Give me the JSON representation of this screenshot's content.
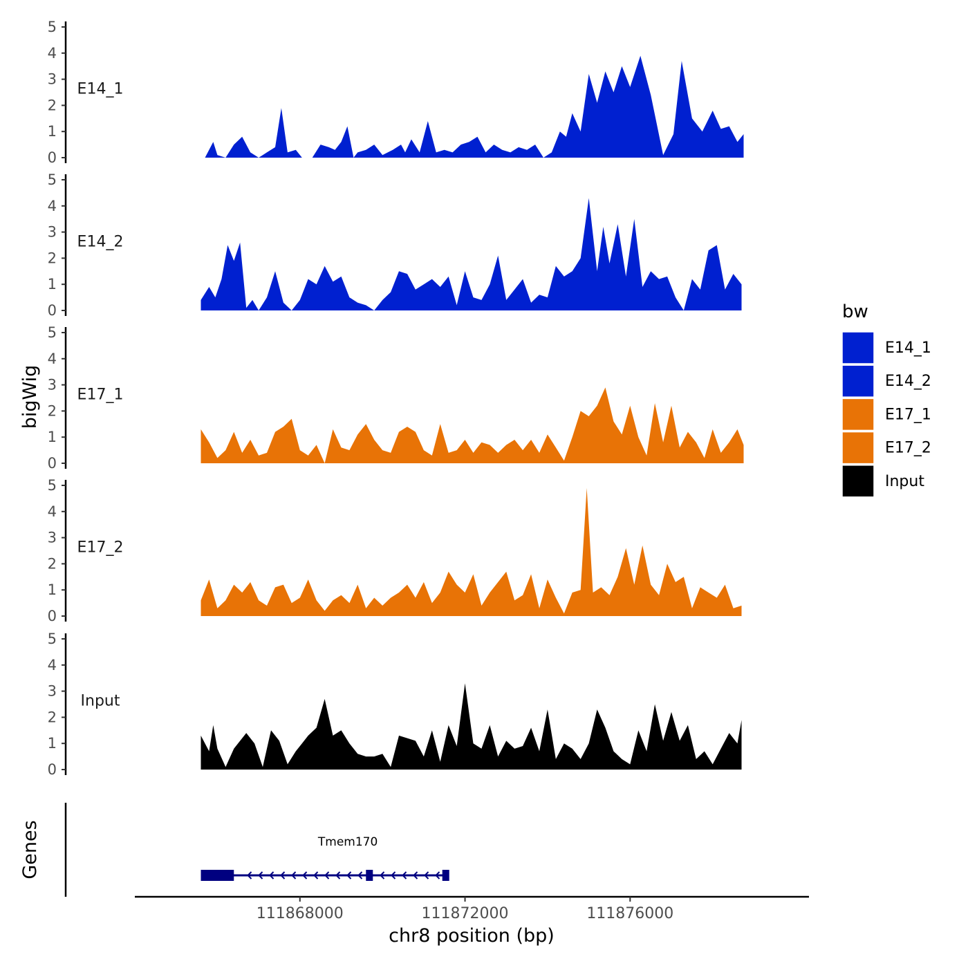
{
  "chart_data": {
    "type": "area",
    "subtype": "genome coverage tracks (bigWig) with gene annotation",
    "xlabel": "chr8 position (bp)",
    "ylabel": "bigWig",
    "gene_panel_label": "Genes",
    "x_ticks": [
      111868000,
      111872000,
      111876000
    ],
    "x_tick_labels": [
      "111868000",
      "111872000",
      "111876000"
    ],
    "xlim": [
      111864000,
      111880300
    ],
    "ylim": [
      0,
      5
    ],
    "y_ticks": [
      0,
      1,
      2,
      3,
      4,
      5
    ],
    "y_tick_labels": [
      "0",
      "1",
      "2",
      "3",
      "4",
      "5"
    ],
    "grid": false,
    "legend": {
      "title": "bw",
      "position": "right",
      "entries": [
        {
          "label": "E14_1",
          "color": "#0020d0"
        },
        {
          "label": "E14_2",
          "color": "#0020d0"
        },
        {
          "label": "E17_1",
          "color": "#e87306"
        },
        {
          "label": "E17_2",
          "color": "#e87306"
        },
        {
          "label": "Input",
          "color": "#000000"
        }
      ]
    },
    "series": [
      {
        "name": "E14_1",
        "color": "#0020d0",
        "x": [
          111865700,
          111865900,
          111866000,
          111866200,
          111866400,
          111866600,
          111866800,
          111867000,
          111867200,
          111867400,
          111867550,
          111867700,
          111867900,
          111868050,
          111868300,
          111868500,
          111868700,
          111868850,
          111869000,
          111869150,
          111869300,
          111869400,
          111869600,
          111869800,
          111870000,
          111870250,
          111870450,
          111870550,
          111870700,
          111870900,
          111871100,
          111871300,
          111871500,
          111871700,
          111871900,
          111872100,
          111872300,
          111872500,
          111872700,
          111872900,
          111873100,
          111873300,
          111873500,
          111873700,
          111873900,
          111874100,
          111874300,
          111874450,
          111874600,
          111874800,
          111875000,
          111875200,
          111875400,
          111875600,
          111875800,
          111876000,
          111876250,
          111876500,
          111876800,
          111877050,
          111877250,
          111877500,
          111877750,
          111878000,
          111878200,
          111878400,
          111878600,
          111878750
        ],
        "y": [
          0,
          0.6,
          0.1,
          0,
          0.5,
          0.8,
          0.2,
          0,
          0.2,
          0.4,
          1.9,
          0.2,
          0.3,
          0,
          0,
          0.5,
          0.4,
          0.3,
          0.6,
          1.2,
          0,
          0.2,
          0.3,
          0.5,
          0.1,
          0.3,
          0.5,
          0.2,
          0.7,
          0.2,
          1.4,
          0.2,
          0.3,
          0.2,
          0.5,
          0.6,
          0.8,
          0.2,
          0.5,
          0.3,
          0.2,
          0.4,
          0.3,
          0.5,
          0,
          0.2,
          1.0,
          0.8,
          1.7,
          1.0,
          3.2,
          2.1,
          3.3,
          2.5,
          3.5,
          2.7,
          3.9,
          2.4,
          0.1,
          0.9,
          3.7,
          1.5,
          1.0,
          1.8,
          1.1,
          1.2,
          0.6,
          0.9
        ]
      },
      {
        "name": "E14_2",
        "color": "#0020d0",
        "x": [
          111865600,
          111865800,
          111865950,
          111866100,
          111866250,
          111866400,
          111866550,
          111866700,
          111866850,
          111867000,
          111867200,
          111867400,
          111867600,
          111867800,
          111868000,
          111868200,
          111868400,
          111868600,
          111868800,
          111869000,
          111869200,
          111869400,
          111869600,
          111869800,
          111870000,
          111870200,
          111870400,
          111870600,
          111870800,
          111871000,
          111871200,
          111871400,
          111871600,
          111871800,
          111872000,
          111872200,
          111872400,
          111872600,
          111872800,
          111873000,
          111873200,
          111873400,
          111873600,
          111873800,
          111874000,
          111874200,
          111874400,
          111874600,
          111874800,
          111875000,
          111875200,
          111875350,
          111875500,
          111875700,
          111875900,
          111876100,
          111876300,
          111876500,
          111876700,
          111876900,
          111877100,
          111877300,
          111877500,
          111877700,
          111877900,
          111878100,
          111878300,
          111878500,
          111878700
        ],
        "y": [
          0.4,
          0.9,
          0.5,
          1.2,
          2.5,
          1.9,
          2.6,
          0.1,
          0.4,
          0,
          0.5,
          1.5,
          0.3,
          0,
          0.4,
          1.2,
          1.0,
          1.7,
          1.1,
          1.3,
          0.5,
          0.3,
          0.2,
          0,
          0.4,
          0.7,
          1.5,
          1.4,
          0.8,
          1.0,
          1.2,
          0.9,
          1.3,
          0.2,
          1.5,
          0.5,
          0.4,
          1.0,
          2.1,
          0.4,
          0.8,
          1.2,
          0.3,
          0.6,
          0.5,
          1.7,
          1.3,
          1.5,
          2.0,
          4.3,
          1.5,
          3.2,
          1.8,
          3.3,
          1.3,
          3.5,
          0.9,
          1.5,
          1.2,
          1.3,
          0.5,
          0,
          1.2,
          0.8,
          2.3,
          2.5,
          0.8,
          1.4,
          1.0
        ]
      },
      {
        "name": "E17_1",
        "color": "#e87306",
        "x": [
          111865600,
          111865800,
          111866000,
          111866200,
          111866400,
          111866600,
          111866800,
          111867000,
          111867200,
          111867400,
          111867600,
          111867800,
          111868000,
          111868200,
          111868400,
          111868600,
          111868800,
          111869000,
          111869200,
          111869400,
          111869600,
          111869800,
          111870000,
          111870200,
          111870400,
          111870600,
          111870800,
          111871000,
          111871200,
          111871400,
          111871600,
          111871800,
          111872000,
          111872200,
          111872400,
          111872600,
          111872800,
          111873000,
          111873200,
          111873400,
          111873600,
          111873800,
          111874000,
          111874200,
          111874400,
          111874600,
          111874800,
          111875000,
          111875200,
          111875400,
          111875600,
          111875800,
          111876000,
          111876200,
          111876400,
          111876600,
          111876800,
          111877000,
          111877200,
          111877400,
          111877600,
          111877800,
          111878000,
          111878200,
          111878400,
          111878600,
          111878750
        ],
        "y": [
          1.3,
          0.8,
          0.2,
          0.5,
          1.2,
          0.4,
          0.9,
          0.3,
          0.4,
          1.2,
          1.4,
          1.7,
          0.5,
          0.3,
          0.7,
          0,
          1.3,
          0.6,
          0.5,
          1.1,
          1.5,
          0.9,
          0.5,
          0.4,
          1.2,
          1.4,
          1.2,
          0.5,
          0.3,
          1.5,
          0.4,
          0.5,
          0.9,
          0.4,
          0.8,
          0.7,
          0.4,
          0.7,
          0.9,
          0.5,
          0.9,
          0.4,
          1.1,
          0.6,
          0.1,
          1.0,
          2.0,
          1.8,
          2.2,
          2.9,
          1.6,
          1.1,
          2.2,
          1.0,
          0.3,
          2.3,
          0.8,
          2.2,
          0.6,
          1.2,
          0.8,
          0.2,
          1.3,
          0.4,
          0.8,
          1.3,
          0.7
        ]
      },
      {
        "name": "E17_2",
        "color": "#e87306",
        "x": [
          111865600,
          111865800,
          111866000,
          111866200,
          111866400,
          111866600,
          111866800,
          111867000,
          111867200,
          111867400,
          111867600,
          111867800,
          111868000,
          111868200,
          111868400,
          111868600,
          111868800,
          111869000,
          111869200,
          111869400,
          111869600,
          111869800,
          111870000,
          111870200,
          111870400,
          111870600,
          111870800,
          111871000,
          111871200,
          111871400,
          111871600,
          111871800,
          111872000,
          111872200,
          111872400,
          111872600,
          111872800,
          111873000,
          111873200,
          111873400,
          111873600,
          111873800,
          111874000,
          111874200,
          111874400,
          111874600,
          111874800,
          111874950,
          111875100,
          111875300,
          111875500,
          111875700,
          111875900,
          111876100,
          111876300,
          111876500,
          111876700,
          111876900,
          111877100,
          111877300,
          111877500,
          111877700,
          111877900,
          111878100,
          111878300,
          111878500,
          111878700
        ],
        "y": [
          0.6,
          1.4,
          0.3,
          0.6,
          1.2,
          0.9,
          1.3,
          0.6,
          0.4,
          1.1,
          1.2,
          0.5,
          0.7,
          1.4,
          0.6,
          0.2,
          0.6,
          0.8,
          0.5,
          1.2,
          0.3,
          0.7,
          0.4,
          0.7,
          0.9,
          1.2,
          0.7,
          1.3,
          0.5,
          0.9,
          1.7,
          1.2,
          0.9,
          1.6,
          0.4,
          0.9,
          1.3,
          1.7,
          0.6,
          0.8,
          1.6,
          0.3,
          1.4,
          0.7,
          0.1,
          0.9,
          1.0,
          4.9,
          0.9,
          1.1,
          0.8,
          1.5,
          2.6,
          1.2,
          2.7,
          1.2,
          0.8,
          2.0,
          1.3,
          1.5,
          0.3,
          1.1,
          0.9,
          0.7,
          1.2,
          0.3,
          0.4
        ]
      },
      {
        "name": "Input",
        "color": "#000000",
        "x": [
          111865600,
          111865800,
          111865900,
          111866000,
          111866200,
          111866400,
          111866500,
          111866700,
          111866900,
          111867100,
          111867300,
          111867500,
          111867700,
          111867900,
          111868050,
          111868200,
          111868400,
          111868600,
          111868800,
          111869000,
          111869200,
          111869400,
          111869600,
          111869800,
          111870000,
          111870200,
          111870400,
          111870600,
          111870800,
          111871000,
          111871200,
          111871400,
          111871600,
          111871800,
          111872000,
          111872200,
          111872400,
          111872600,
          111872800,
          111873000,
          111873200,
          111873400,
          111873600,
          111873800,
          111874000,
          111874200,
          111874400,
          111874600,
          111874800,
          111875000,
          111875200,
          111875400,
          111875600,
          111875800,
          111876000,
          111876200,
          111876400,
          111876600,
          111876800,
          111877000,
          111877200,
          111877400,
          111877600,
          111877800,
          111878000,
          111878200,
          111878400,
          111878600,
          111878700
        ],
        "y": [
          1.3,
          0.7,
          1.7,
          0.8,
          0.1,
          0.8,
          1.0,
          1.4,
          1.0,
          0.1,
          1.5,
          1.1,
          0.2,
          0.7,
          1.0,
          1.3,
          1.6,
          2.7,
          1.3,
          1.5,
          1.0,
          0.6,
          0.5,
          0.5,
          0.6,
          0.1,
          1.3,
          1.2,
          1.1,
          0.5,
          1.5,
          0.3,
          1.7,
          0.9,
          3.3,
          1.0,
          0.8,
          1.7,
          0.5,
          1.1,
          0.8,
          0.9,
          1.6,
          0.7,
          2.3,
          0.4,
          1.0,
          0.8,
          0.4,
          1.0,
          2.3,
          1.6,
          0.7,
          0.4,
          0.2,
          1.5,
          0.7,
          2.5,
          1.1,
          2.2,
          1.1,
          1.7,
          0.4,
          0.7,
          0.2,
          0.8,
          1.4,
          1.0,
          1.9
        ]
      }
    ],
    "genes": [
      {
        "name": "Tmem170",
        "strand": "-",
        "start": 111865600,
        "end": 111871550,
        "color": "#000080",
        "exons": [
          [
            111865600,
            111866400
          ],
          [
            111869600,
            111869700
          ],
          [
            111871450,
            111871550
          ]
        ]
      }
    ]
  }
}
